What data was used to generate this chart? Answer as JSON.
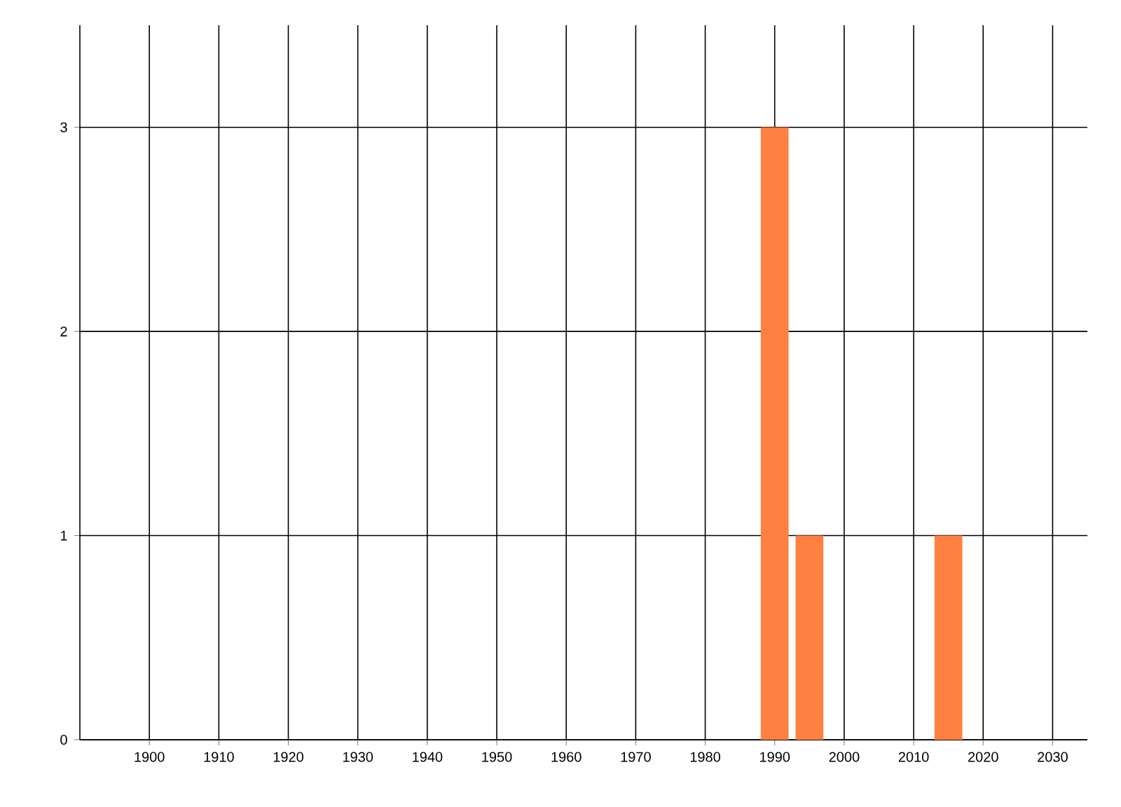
{
  "chart_data": {
    "type": "bar",
    "x": [
      1990,
      1995,
      2015
    ],
    "values": [
      3,
      1,
      1
    ],
    "color": "#ff8040",
    "xlim": [
      1890,
      2035
    ],
    "ylim": [
      0,
      3.5
    ],
    "xticks": [
      1900,
      1910,
      1920,
      1930,
      1940,
      1950,
      1960,
      1970,
      1980,
      1990,
      2000,
      2010,
      2020,
      2030
    ],
    "yticks": [
      0,
      1,
      2,
      3
    ],
    "grid": true
  }
}
